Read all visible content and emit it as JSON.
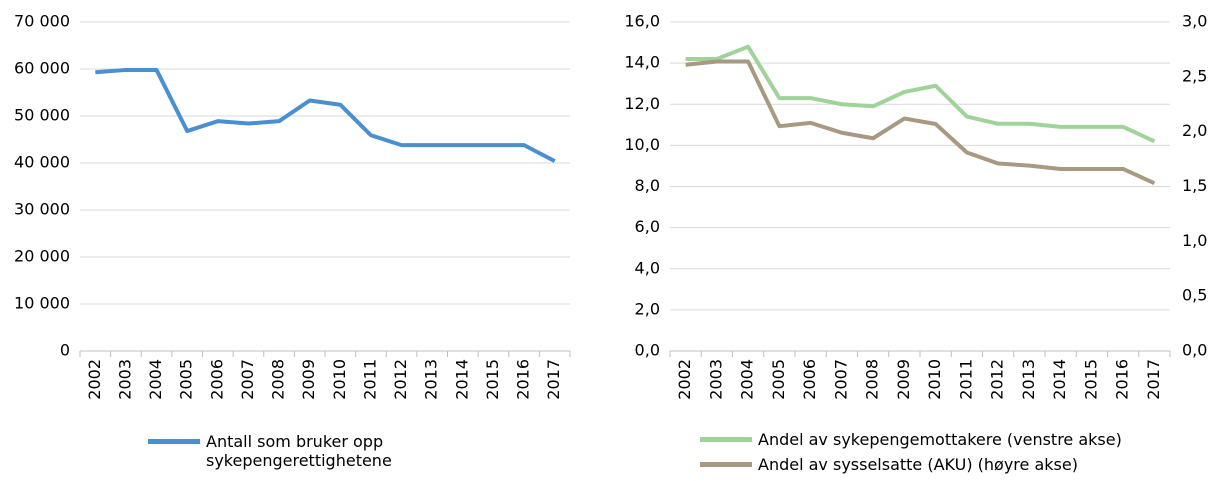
{
  "chart_data": [
    {
      "type": "line",
      "categories": [
        "2002",
        "2003",
        "2004",
        "2005",
        "2006",
        "2007",
        "2008",
        "2009",
        "2010",
        "2011",
        "2012",
        "2013",
        "2014",
        "2015",
        "2016",
        "2017"
      ],
      "series": [
        {
          "name": "Antall som bruker opp sykepengerettighetene",
          "color": "#4a8fd1",
          "values": [
            59300,
            59800,
            59800,
            46800,
            48900,
            48400,
            48900,
            53300,
            52400,
            45900,
            43800,
            43800,
            43800,
            43800,
            43800,
            40400
          ]
        }
      ],
      "ylim": [
        0,
        70000
      ],
      "yticks": [
        0,
        {
          "value": 10000,
          "label": "10 000"
        },
        {
          "value": 20000,
          "label": "20 000"
        },
        {
          "value": 30000,
          "label": "30 000"
        },
        {
          "value": 40000,
          "label": "40 000"
        },
        {
          "value": 50000,
          "label": "50 000"
        },
        {
          "value": 60000,
          "label": "60 000"
        },
        {
          "value": 70000,
          "label": "70 000"
        }
      ],
      "grid": true
    },
    {
      "type": "line",
      "categories": [
        "2002",
        "2003",
        "2004",
        "2005",
        "2006",
        "2007",
        "2008",
        "2009",
        "2010",
        "2011",
        "2012",
        "2013",
        "2014",
        "2015",
        "2016",
        "2017"
      ],
      "series": [
        {
          "name": "Andel av sykepengemottakere (venstre akse)",
          "color": "#9fd39a",
          "values": [
            14.2,
            14.2,
            14.8,
            12.3,
            12.3,
            12.0,
            11.9,
            12.6,
            12.9,
            11.4,
            11.05,
            11.05,
            10.9,
            10.9,
            10.9,
            10.2
          ]
        },
        {
          "name": "Andel av sysselsatte (AKU) (høyre akse)",
          "color": "#a89a82",
          "axis": "y2",
          "values": [
            2.61,
            2.64,
            2.64,
            2.05,
            2.08,
            1.99,
            1.94,
            2.12,
            2.07,
            1.81,
            1.71,
            1.69,
            1.66,
            1.66,
            1.66,
            1.53
          ]
        }
      ],
      "ylim": [
        0,
        16
      ],
      "yticks": [
        {
          "value": 0,
          "label": "0,0"
        },
        {
          "value": 2,
          "label": "2,0"
        },
        {
          "value": 4,
          "label": "4,0"
        },
        {
          "value": 6,
          "label": "6,0"
        },
        {
          "value": 8,
          "label": "8,0"
        },
        {
          "value": 10,
          "label": "10,0"
        },
        {
          "value": 12,
          "label": "12,0"
        },
        {
          "value": 14,
          "label": "14,0"
        },
        {
          "value": 16,
          "label": "16,0"
        }
      ],
      "y2lim": [
        0,
        3
      ],
      "y2ticks": [
        {
          "value": 0,
          "label": "0,0"
        },
        {
          "value": 0.5,
          "label": "0,5"
        },
        {
          "value": 1,
          "label": "1,0"
        },
        {
          "value": 1.5,
          "label": "1,5"
        },
        {
          "value": 2,
          "label": "2,0"
        },
        {
          "value": 2.5,
          "label": "2,5"
        },
        {
          "value": 3,
          "label": "3,0"
        }
      ],
      "grid": true
    }
  ]
}
